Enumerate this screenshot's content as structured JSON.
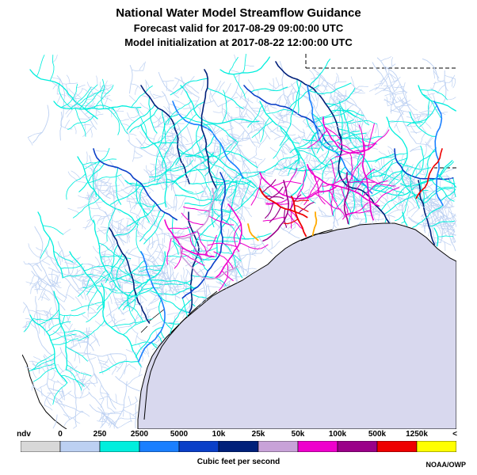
{
  "header": {
    "title": "National Water Model Streamflow Guidance",
    "forecast": "Forecast valid for 2017-08-29 09:00:00 UTC",
    "init": "Model initialization at 2017-08-22 12:00:00 UTC"
  },
  "legend": {
    "bins": [
      {
        "label": "ndv",
        "color": "#d8d8d8"
      },
      {
        "label": "0",
        "color": "#bcd0f2"
      },
      {
        "label": "250",
        "color": "#00eedd"
      },
      {
        "label": "2500",
        "color": "#1a7fff"
      },
      {
        "label": "5000",
        "color": "#0a3fc8"
      },
      {
        "label": "10k",
        "color": "#00207a"
      },
      {
        "label": "25k",
        "color": "#c8a2d8"
      },
      {
        "label": "50k",
        "color": "#ee00cc"
      },
      {
        "label": "100k",
        "color": "#9a0088"
      },
      {
        "label": "500k",
        "color": "#ee0000"
      },
      {
        "label": "1250k",
        "color": "#ffaa00"
      },
      {
        "label": "<",
        "color": "#ffff00"
      }
    ],
    "unit": "Cubic feet per second"
  },
  "map_colors": {
    "ocean": "#d8d8ee",
    "coast": "#000000",
    "border": "#000000"
  },
  "credit": "NOAA/OWP"
}
